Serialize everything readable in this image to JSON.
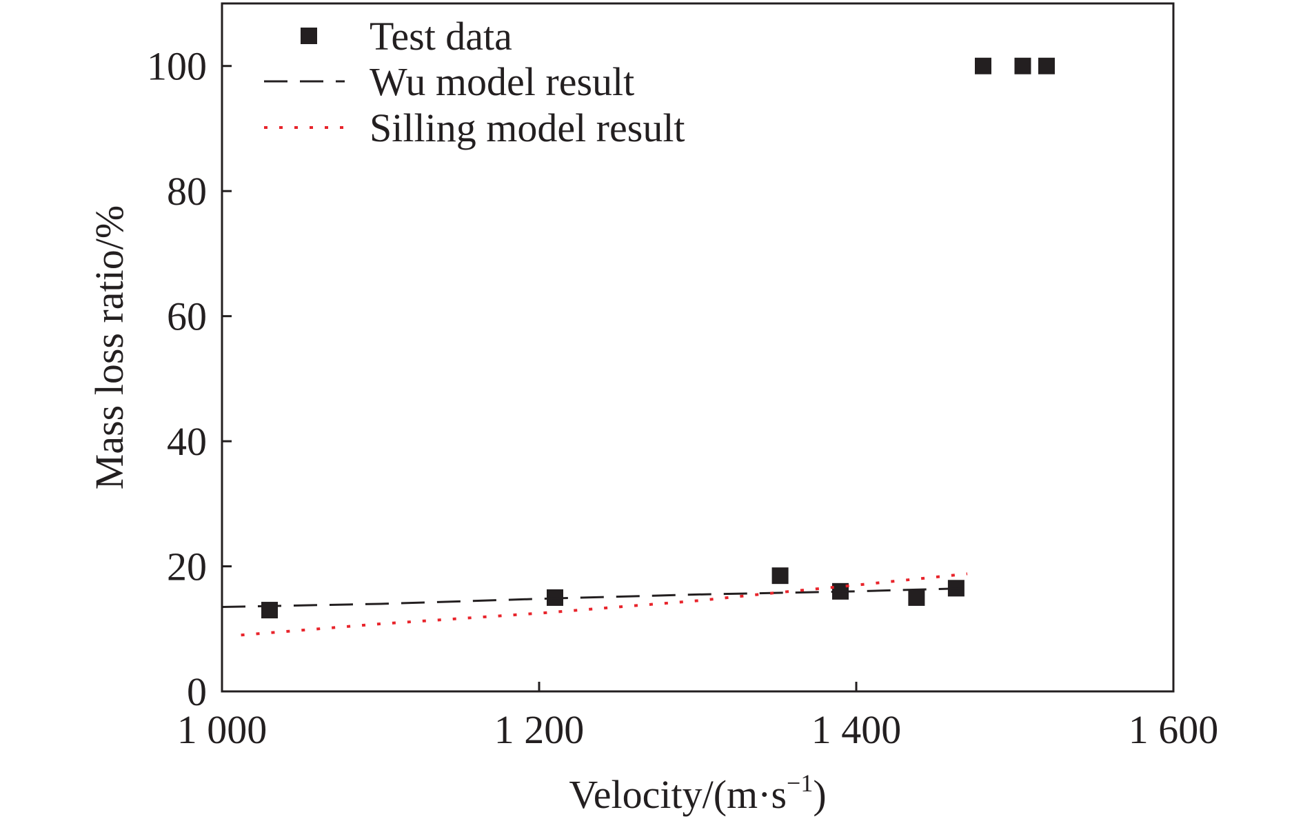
{
  "chart_data": {
    "type": "scatter",
    "title": "",
    "xlabel": "Velocity/(m·s",
    "xlabel_sup": "−1",
    "xlabel_close": ")",
    "ylabel": "Mass loss ratio/%",
    "xlim": [
      1000,
      1600
    ],
    "ylim": [
      0,
      110
    ],
    "xticks": [
      1000,
      1200,
      1400,
      1600
    ],
    "xtick_labels": [
      "1 000",
      "1 200",
      "1 400",
      "1 600"
    ],
    "yticks": [
      0,
      20,
      40,
      60,
      80,
      100
    ],
    "ytick_labels": [
      "0",
      "20",
      "40",
      "60",
      "80",
      "100"
    ],
    "grid": false,
    "legend_position": "top-left",
    "series": [
      {
        "name": "Test data",
        "kind": "scatter",
        "marker": "square",
        "color": "#231f20",
        "x": [
          1030,
          1210,
          1352,
          1390,
          1438,
          1463,
          1480,
          1505,
          1520
        ],
        "y": [
          13,
          15,
          18.5,
          16,
          15,
          16.5,
          100,
          100,
          100
        ]
      },
      {
        "name": "Wu model result",
        "kind": "line",
        "dash": "dashed",
        "color": "#231f20",
        "x": [
          1000,
          1100,
          1200,
          1300,
          1400,
          1470
        ],
        "y": [
          13.5,
          14.0,
          14.8,
          15.5,
          16.0,
          16.5
        ]
      },
      {
        "name": "Silling model result",
        "kind": "line",
        "dash": "dotted",
        "color": "#e8242b",
        "x": [
          1012,
          1100,
          1200,
          1300,
          1350,
          1400,
          1470
        ],
        "y": [
          9,
          10.8,
          12.5,
          14.5,
          15.8,
          17,
          18.8
        ]
      }
    ]
  }
}
